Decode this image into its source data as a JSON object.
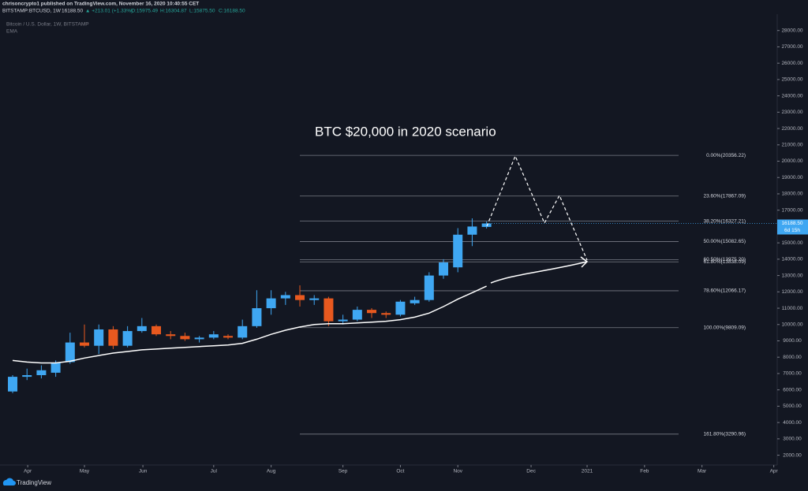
{
  "header": {
    "publisher": "chrisoncrypto1 published on TradingView.com, November 16, 2020 10:40:55 CET",
    "symbol": "BITSTAMP:BTCUSD, 1W",
    "price": "16188.50",
    "change": "▲ +213.01 (+1.33%)",
    "open": "O:15975.49",
    "high": "H:16304.87",
    "low": "L:15875.50",
    "close": "C:16188.50"
  },
  "brand": "TradingView",
  "chart_data": {
    "type": "candlestick",
    "title": "Bitcoin / U.S. Dollar, 1W, BITSTAMP",
    "annotation": "BTC $20,000 in 2020 scenario",
    "categories": [
      null,
      null,
      null,
      null,
      null,
      null,
      null,
      null,
      null,
      null,
      null,
      null,
      null,
      null,
      null,
      null,
      null,
      null,
      null,
      null,
      null,
      null,
      null,
      null,
      null,
      null,
      null,
      null,
      null,
      null,
      null,
      null,
      null,
      null
    ],
    "open": [
      5900,
      6800,
      6900,
      7050,
      7700,
      8900,
      8700,
      9700,
      8700,
      9600,
      9900,
      9400,
      9300,
      9100,
      9200,
      9300,
      9200,
      9900,
      11000,
      11600,
      11800,
      11500,
      11600,
      10200,
      10300,
      10900,
      10700,
      10600,
      11300,
      11500,
      13000,
      13500,
      15500,
      15975.49
    ],
    "high": [
      6900,
      7300,
      7500,
      7800,
      9500,
      10000,
      10000,
      9900,
      9900,
      10400,
      10000,
      9600,
      9500,
      9300,
      9600,
      9400,
      10300,
      12100,
      12100,
      12000,
      12400,
      11800,
      11700,
      10600,
      11100,
      11000,
      10800,
      11500,
      11700,
      13200,
      14000,
      15900,
      16500,
      16304.87
    ],
    "low": [
      5800,
      6600,
      6700,
      6800,
      7600,
      8600,
      8200,
      8500,
      8600,
      9500,
      9300,
      9100,
      9000,
      8900,
      9100,
      9100,
      9100,
      9800,
      10600,
      11200,
      11100,
      11200,
      9900,
      10000,
      10200,
      10400,
      10400,
      10500,
      11200,
      11400,
      12800,
      13200,
      14800,
      15875.5
    ],
    "close": [
      6800,
      6900,
      7200,
      7650,
      8900,
      8700,
      9700,
      8700,
      9600,
      9900,
      9400,
      9300,
      9100,
      9200,
      9400,
      9200,
      9900,
      11000,
      11600,
      11800,
      11500,
      11600,
      10200,
      10300,
      10900,
      10700,
      10600,
      11400,
      11500,
      13000,
      13800,
      15500,
      16000,
      16188.5
    ],
    "up_color": "#3fa7f2",
    "down_color": "#e8591f",
    "ema": {
      "name": "EMA",
      "color": "#ffffff",
      "values": [
        7800,
        7700,
        7650,
        7650,
        7750,
        7950,
        8100,
        8250,
        8350,
        8450,
        8500,
        8550,
        8600,
        8650,
        8700,
        8750,
        8850,
        9100,
        9400,
        9650,
        9850,
        10000,
        10050,
        10050,
        10100,
        10150,
        10200,
        10300,
        10450,
        10700,
        11100,
        11550,
        11950,
        12350
      ]
    },
    "last_price": {
      "value": 16188.5,
      "label": "16188.50"
    },
    "countdown": "6d 15h",
    "fib_levels": [
      {
        "value": 20356.22,
        "label": "0.00%(20356.22)"
      },
      {
        "value": 17867.09,
        "label": "23.60%(17867.09)"
      },
      {
        "value": 16327.21,
        "label": "38.20%(16327.21)"
      },
      {
        "value": 15082.65,
        "label": "50.00%(15082.65)"
      },
      {
        "value": 13975.2,
        "label": "60.50%(13975.20)"
      },
      {
        "value": 13838.09,
        "label": "61.80%(13838.09)"
      },
      {
        "value": 12066.17,
        "label": "78.60%(12066.17)"
      },
      {
        "value": 9809.09,
        "label": "100.00%(9809.09)"
      },
      {
        "value": 3290.96,
        "label": "161.80%(3290.96)"
      }
    ],
    "ylim": [
      1400,
      29000
    ],
    "yticks": [
      {
        "value": 2000,
        "label": "2000.00"
      },
      {
        "value": 3000,
        "label": "3000.00"
      },
      {
        "value": 4000,
        "label": "4000.00"
      },
      {
        "value": 5000,
        "label": "5000.00"
      },
      {
        "value": 6000,
        "label": "6000.00"
      },
      {
        "value": 7000,
        "label": "7000.00"
      },
      {
        "value": 8000,
        "label": "8000.00"
      },
      {
        "value": 9000,
        "label": "9000.00"
      },
      {
        "value": 10000,
        "label": "10000.00"
      },
      {
        "value": 11000,
        "label": "11000.00"
      },
      {
        "value": 12000,
        "label": "12000.00"
      },
      {
        "value": 13000,
        "label": "13000.00"
      },
      {
        "value": 14000,
        "label": "14000.00"
      },
      {
        "value": 15000,
        "label": "15000.00"
      },
      {
        "value": 16000,
        "label": "16000.00"
      },
      {
        "value": 17000,
        "label": "17000.00"
      },
      {
        "value": 18000,
        "label": "18000.00"
      },
      {
        "value": 19000,
        "label": "19000.00"
      },
      {
        "value": 20000,
        "label": "20000.00"
      },
      {
        "value": 21000,
        "label": "21000.00"
      },
      {
        "value": 22000,
        "label": "22000.00"
      },
      {
        "value": 23000,
        "label": "23000.00"
      },
      {
        "value": 24000,
        "label": "24000.00"
      },
      {
        "value": 25000,
        "label": "25000.00"
      },
      {
        "value": 26000,
        "label": "26000.00"
      },
      {
        "value": 27000,
        "label": "27000.00"
      },
      {
        "value": 28000,
        "label": "28000.00"
      }
    ],
    "xlim": [
      -0.88,
      53.24
    ],
    "xticks": [
      {
        "value": 1.05,
        "label": "Apr"
      },
      {
        "value": 5,
        "label": "May"
      },
      {
        "value": 9.07,
        "label": "Jun"
      },
      {
        "value": 14,
        "label": "Jul"
      },
      {
        "value": 18,
        "label": "Aug"
      },
      {
        "value": 23,
        "label": "Sep"
      },
      {
        "value": 27,
        "label": "Oct"
      },
      {
        "value": 31,
        "label": "Nov"
      },
      {
        "value": 36.1,
        "label": "Dec"
      },
      {
        "value": 40,
        "label": "2021"
      },
      {
        "value": 44,
        "label": "Feb"
      },
      {
        "value": 48,
        "label": "Mar"
      },
      {
        "value": 53,
        "label": "Apr"
      }
    ]
  }
}
